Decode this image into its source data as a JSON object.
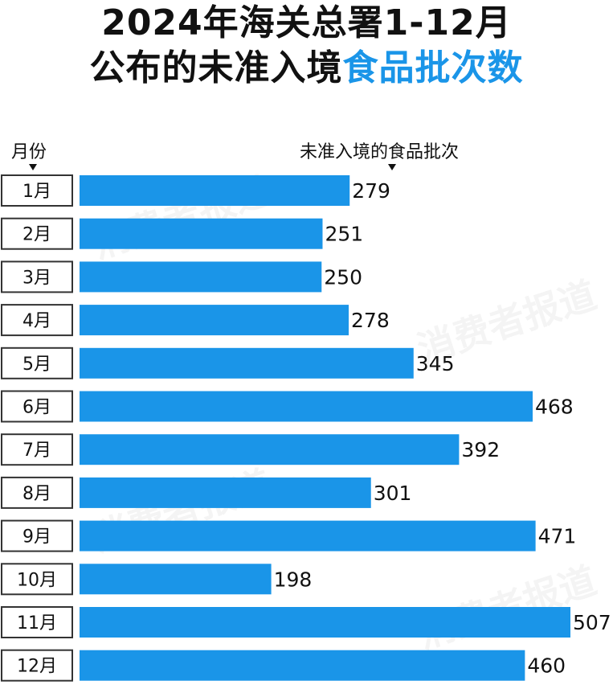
{
  "title_line1": "2024年海关总署1-12月",
  "title_line2_prefix": "公布的未准入境",
  "title_line2_highlight": "食品批次数",
  "watermark_text": "消费者报道",
  "colors": {
    "bar": "#1a95e8",
    "highlight": "#1a95e8",
    "text": "#111111"
  },
  "chart_data": {
    "type": "bar",
    "orientation": "horizontal",
    "xlabel": "未准入境的食品批次",
    "ylabel": "月份",
    "categories": [
      "1月",
      "2月",
      "3月",
      "4月",
      "5月",
      "6月",
      "7月",
      "8月",
      "9月",
      "10月",
      "11月",
      "12月"
    ],
    "values": [
      279,
      251,
      250,
      278,
      345,
      468,
      392,
      301,
      471,
      198,
      507,
      460
    ],
    "data_labels": [
      "279",
      "251",
      "250",
      "278",
      "345",
      "468",
      "392",
      "301",
      "471",
      "198",
      "507",
      "460"
    ],
    "xlim": [
      0,
      507
    ],
    "grid": false,
    "legend": "none"
  }
}
